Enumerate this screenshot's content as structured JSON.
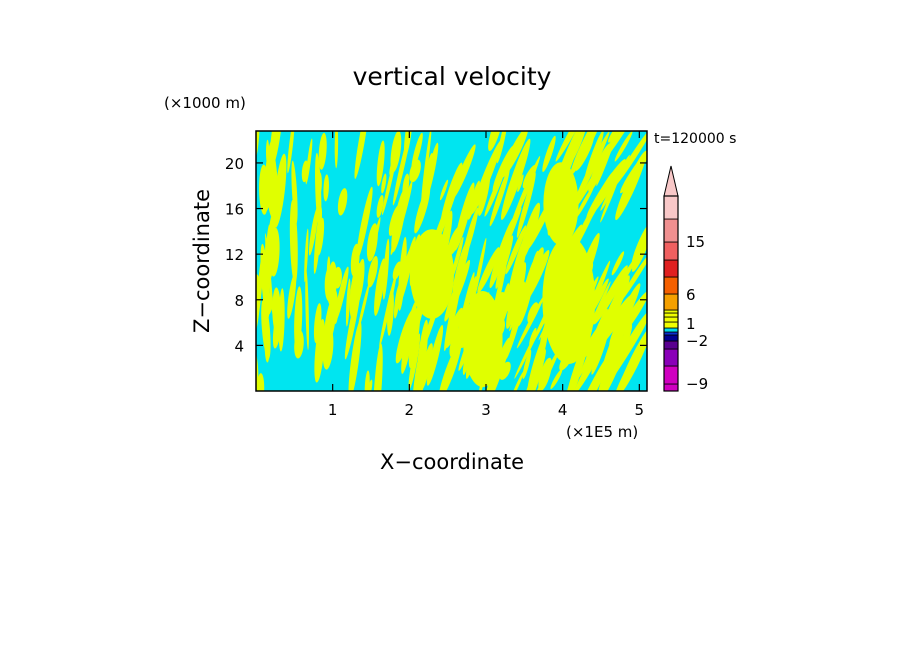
{
  "chart_data": {
    "type": "heatmap",
    "title": "vertical velocity",
    "xlabel": "X−coordinate",
    "ylabel": "Z−coordinate",
    "x_unit": "(×1E5 m)",
    "y_unit": "(×1000 m)",
    "time_label": "t=120000 s",
    "xlim": [
      0,
      5.1
    ],
    "ylim": [
      0,
      22.8
    ],
    "x_ticks": [
      1,
      2,
      3,
      4,
      5
    ],
    "y_ticks": [
      4,
      8,
      12,
      16,
      20
    ],
    "dominant_colors": [
      "#00e5f0",
      "#e0ff00"
    ],
    "colorbar": {
      "tick_labels": [
        "15",
        "6",
        "1",
        "−2",
        "−9"
      ],
      "colors": [
        "#f0ff00",
        "#00d8e8",
        "#0a2fd0",
        "#000090",
        "#5a0090",
        "#8a00b8",
        "#d000c0",
        "#f5a000",
        "#f56000",
        "#e02020",
        "#f06060",
        "#f09090",
        "#f8c8c8"
      ]
    }
  }
}
